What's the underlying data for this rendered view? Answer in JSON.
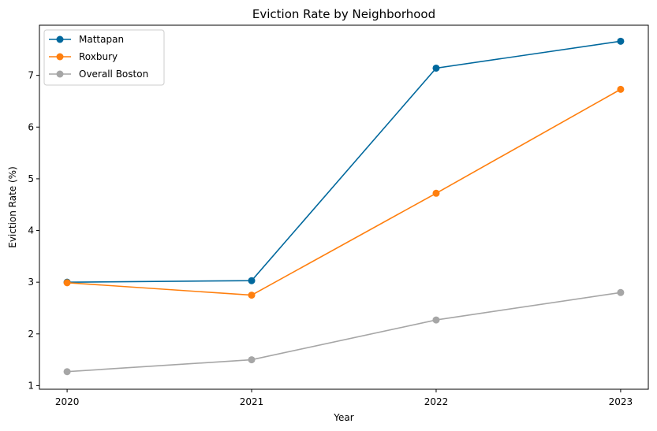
{
  "chart_data": {
    "type": "line",
    "title": "Eviction Rate by Neighborhood",
    "xlabel": "Year",
    "ylabel": "Eviction Rate (%)",
    "categories": [
      "2020",
      "2021",
      "2022",
      "2023"
    ],
    "x": [
      2020,
      2021,
      2022,
      2023
    ],
    "xlim": [
      2019.85,
      2023.15
    ],
    "ylim": [
      0.93,
      7.97
    ],
    "yticks": [
      1,
      2,
      3,
      4,
      5,
      6,
      7
    ],
    "grid": false,
    "legend_position": "top-left",
    "series": [
      {
        "name": "Mattapan",
        "color": "#00689d",
        "marker": "circle",
        "values": [
          3.0,
          3.03,
          7.14,
          7.66
        ]
      },
      {
        "name": "Roxbury",
        "color": "#ff7f0e",
        "marker": "circle",
        "values": [
          2.99,
          2.75,
          4.72,
          6.73
        ]
      },
      {
        "name": "Overall Boston",
        "color": "#a6a6a6",
        "marker": "circle",
        "values": [
          1.27,
          1.5,
          2.27,
          2.8
        ]
      }
    ]
  }
}
